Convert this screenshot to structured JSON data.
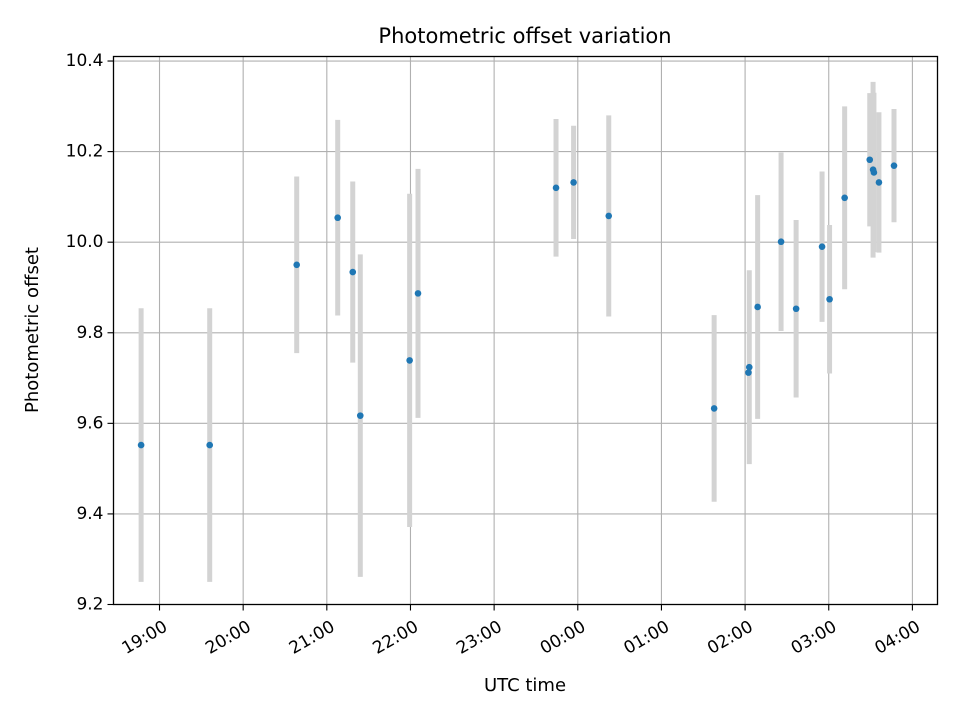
{
  "chart_data": {
    "type": "scatter",
    "title": "Photometric offset variation",
    "xlabel": "UTC time",
    "ylabel": "Photometric offset",
    "x_unit": "hours (UTC, continuing past midnight)",
    "xlim": [
      18.45,
      28.3
    ],
    "ylim": [
      9.2,
      10.41
    ],
    "grid": true,
    "x_ticks": [
      {
        "value": 19,
        "label": "19:00"
      },
      {
        "value": 20,
        "label": "20:00"
      },
      {
        "value": 21,
        "label": "21:00"
      },
      {
        "value": 22,
        "label": "22:00"
      },
      {
        "value": 23,
        "label": "23:00"
      },
      {
        "value": 24,
        "label": "00:00"
      },
      {
        "value": 25,
        "label": "01:00"
      },
      {
        "value": 26,
        "label": "02:00"
      },
      {
        "value": 27,
        "label": "03:00"
      },
      {
        "value": 28,
        "label": "04:00"
      }
    ],
    "y_ticks": [
      {
        "value": 9.2,
        "label": "9.2"
      },
      {
        "value": 9.4,
        "label": "9.4"
      },
      {
        "value": 9.6,
        "label": "9.6"
      },
      {
        "value": 9.8,
        "label": "9.8"
      },
      {
        "value": 10.0,
        "label": "10.0"
      },
      {
        "value": 10.2,
        "label": "10.2"
      },
      {
        "value": 10.4,
        "label": "10.4"
      }
    ],
    "marker_color": "#1f77b4",
    "errorbar_color": "#d3d3d3",
    "points": [
      {
        "x": 18.78,
        "y": 9.552,
        "yerr": 0.302
      },
      {
        "x": 19.6,
        "y": 9.552,
        "yerr": 0.302
      },
      {
        "x": 20.64,
        "y": 9.95,
        "yerr": 0.195
      },
      {
        "x": 21.13,
        "y": 10.054,
        "yerr": 0.216
      },
      {
        "x": 21.31,
        "y": 9.934,
        "yerr": 0.2
      },
      {
        "x": 21.4,
        "y": 9.617,
        "yerr": 0.356
      },
      {
        "x": 21.99,
        "y": 9.739,
        "yerr": 0.368
      },
      {
        "x": 22.09,
        "y": 9.887,
        "yerr": 0.275
      },
      {
        "x": 23.74,
        "y": 10.12,
        "yerr": 0.152
      },
      {
        "x": 23.95,
        "y": 10.132,
        "yerr": 0.125
      },
      {
        "x": 24.37,
        "y": 10.058,
        "yerr": 0.222
      },
      {
        "x": 25.63,
        "y": 9.633,
        "yerr": 0.206
      },
      {
        "x": 26.04,
        "y": 9.712,
        "yerr": 0.0
      },
      {
        "x": 26.05,
        "y": 9.724,
        "yerr": 0.214
      },
      {
        "x": 26.15,
        "y": 9.857,
        "yerr": 0.247
      },
      {
        "x": 26.43,
        "y": 10.001,
        "yerr": 0.197
      },
      {
        "x": 26.61,
        "y": 9.853,
        "yerr": 0.196
      },
      {
        "x": 26.92,
        "y": 9.99,
        "yerr": 0.166
      },
      {
        "x": 27.01,
        "y": 9.874,
        "yerr": 0.164
      },
      {
        "x": 27.19,
        "y": 10.098,
        "yerr": 0.202
      },
      {
        "x": 27.49,
        "y": 10.182,
        "yerr": 0.147
      },
      {
        "x": 27.53,
        "y": 10.16,
        "yerr": 0.194
      },
      {
        "x": 27.54,
        "y": 10.154,
        "yerr": 0.176
      },
      {
        "x": 27.6,
        "y": 10.132,
        "yerr": 0.155
      },
      {
        "x": 27.78,
        "y": 10.169,
        "yerr": 0.125
      }
    ]
  }
}
